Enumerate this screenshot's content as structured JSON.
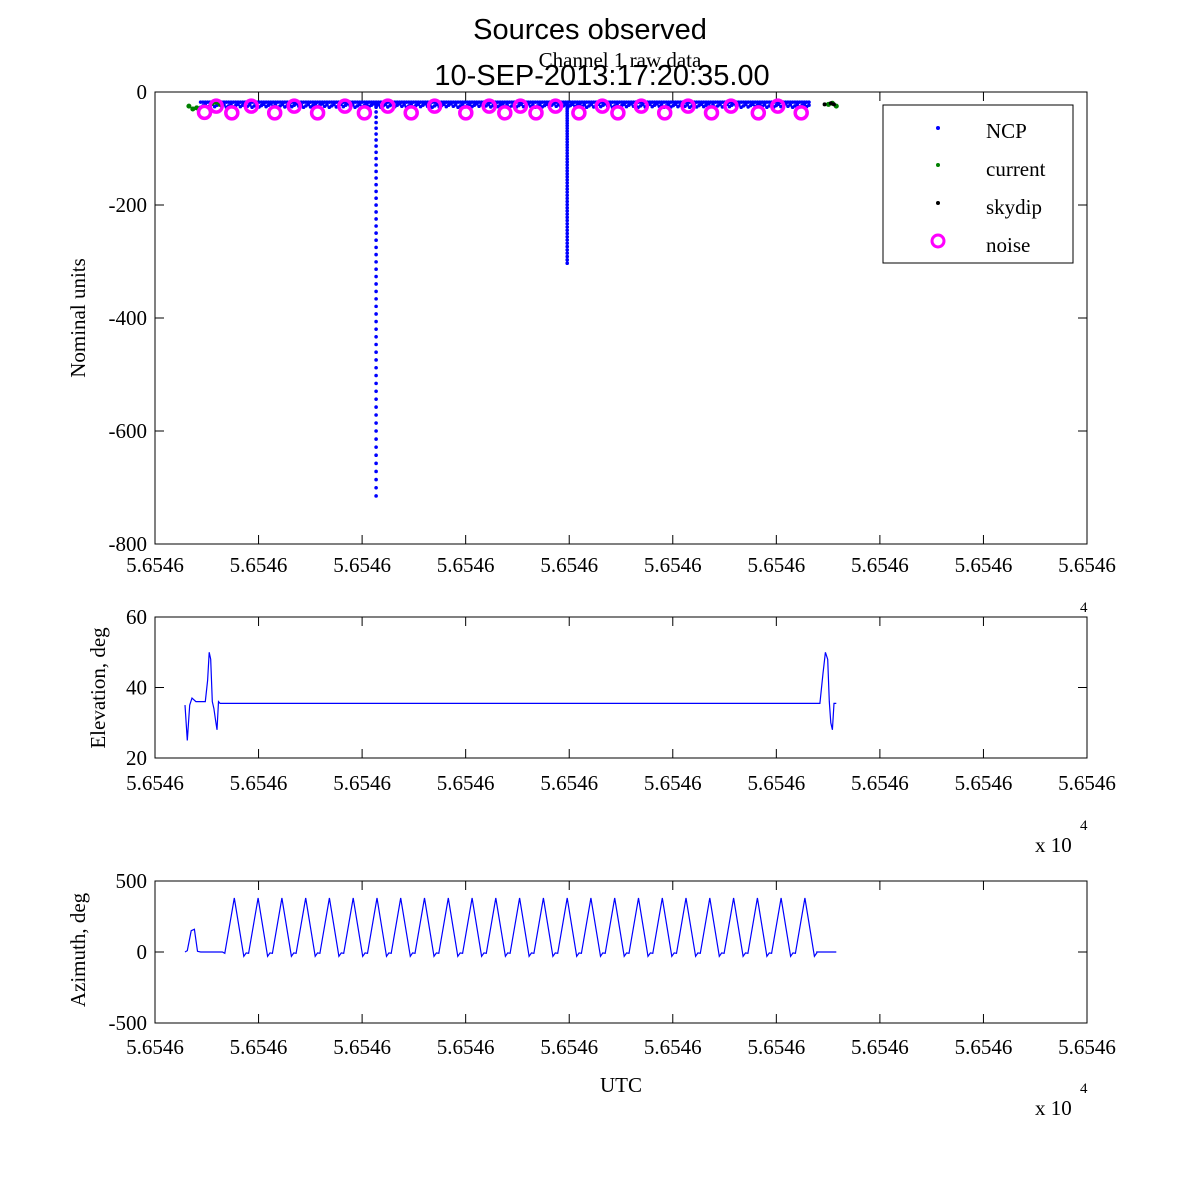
{
  "figure": {
    "title_line1": "Sources observed",
    "title_line2": "10-SEP-2013:17:20:35.00",
    "colors": {
      "axes": "#000000",
      "background": "#ffffff",
      "ncp": "#0000ff",
      "current": "#008000",
      "skydip": "#000000",
      "noise": "#ff00ff",
      "trace": "#0000ff"
    }
  },
  "chart_data": [
    {
      "type": "scatter",
      "subtitle": "Channel 1 raw data",
      "xlabel": "",
      "ylabel": "Nominal units",
      "ylim": [
        -800,
        0
      ],
      "xlim": [
        0,
        1
      ],
      "yticks": [
        0,
        -200,
        -400,
        -600,
        -800
      ],
      "xtick_labels": [
        "5.6546",
        "5.6546",
        "5.6546",
        "5.6546",
        "5.6546",
        "5.6546",
        "5.6546",
        "5.6546",
        "5.6546",
        "5.6546"
      ],
      "legend": {
        "placement": "top-right",
        "entries": [
          "NCP",
          "current",
          "skydip",
          "noise"
        ]
      },
      "series": [
        {
          "name": "NCP",
          "baseline": [
            0.02,
            0.8,
            -20
          ],
          "dips": [
            {
              "x": 0.245,
              "min": -715
            },
            {
              "x": 0.49,
              "min": -303
            }
          ]
        },
        {
          "name": "current",
          "points": [
            [
              0.005,
              -25
            ],
            [
              0.01,
              -30
            ],
            [
              0.015,
              -28
            ],
            [
              0.035,
              -20
            ],
            [
              0.04,
              -18
            ],
            [
              0.045,
              -22
            ],
            [
              0.825,
              -22
            ],
            [
              0.83,
              -20
            ],
            [
              0.835,
              -25
            ]
          ]
        },
        {
          "name": "skydip",
          "points": [
            [
              0.82,
              -22
            ],
            [
              0.828,
              -20
            ],
            [
              0.832,
              -22
            ]
          ]
        },
        {
          "name": "noise",
          "x": [
            0.025,
            0.04,
            0.06,
            0.085,
            0.115,
            0.14,
            0.17,
            0.205,
            0.23,
            0.26,
            0.29,
            0.32,
            0.36,
            0.39,
            0.41,
            0.43,
            0.45,
            0.475,
            0.505,
            0.535,
            0.555,
            0.585,
            0.615,
            0.645,
            0.675,
            0.7,
            0.735,
            0.76,
            0.79
          ],
          "values": [
            -36,
            -25,
            -37,
            -25,
            -37,
            -25,
            -37,
            -25,
            -37,
            -25,
            -37,
            -25,
            -37,
            -25,
            -37,
            -25,
            -37,
            -25,
            -37,
            -25,
            -37,
            -25,
            -37,
            -25,
            -37,
            -25,
            -37,
            -25,
            -37
          ]
        }
      ]
    },
    {
      "type": "line",
      "xlabel": "",
      "ylabel": "Elevation, deg",
      "ylim": [
        20,
        60
      ],
      "xlim": [
        0,
        1
      ],
      "yticks": [
        60,
        40,
        20
      ],
      "xtick_labels": [
        "5.6546",
        "5.6546",
        "5.6546",
        "5.6546",
        "5.6546",
        "5.6546",
        "5.6546",
        "5.6546",
        "5.6546",
        "5.6546"
      ],
      "x_exponent": "x 10",
      "x_exponent_power": "4",
      "series": [
        {
          "x": [
            0.0,
            0.003,
            0.006,
            0.009,
            0.014,
            0.02,
            0.026,
            0.029,
            0.031,
            0.033,
            0.035,
            0.037,
            0.039,
            0.041,
            0.043,
            0.045,
            0.046,
            0.05,
            0.3,
            0.6,
            0.72,
            0.8,
            0.81,
            0.814,
            0.818,
            0.821,
            0.824,
            0.826,
            0.828,
            0.83,
            0.832,
            0.835
          ],
          "values": [
            35,
            25,
            35,
            37,
            36,
            36,
            36,
            42,
            50,
            48,
            36,
            34,
            31,
            28,
            36,
            35.5,
            35.5,
            35.5,
            35.5,
            35.5,
            35.5,
            35.5,
            35.5,
            35.5,
            44,
            50,
            48,
            36,
            30,
            28,
            35.5,
            35.5
          ]
        }
      ]
    },
    {
      "type": "line",
      "xlabel": "UTC",
      "ylabel": "Azimuth, deg",
      "ylim": [
        -500,
        500
      ],
      "xlim": [
        0,
        1
      ],
      "yticks": [
        500,
        0,
        -500
      ],
      "xtick_labels": [
        "5.6546",
        "5.6546",
        "5.6546",
        "5.6546",
        "5.6546",
        "5.6546",
        "5.6546",
        "5.6546",
        "5.6546",
        "5.6546"
      ],
      "x_exponent": "x 10",
      "x_exponent_power": "4",
      "series": [
        {
          "x": [
            0.0,
            0.003,
            0.008,
            0.012,
            0.016,
            0.02,
            0.04,
            0.045,
            0.048
          ],
          "values": [
            0,
            10,
            150,
            160,
            5,
            0,
            0,
            0,
            0
          ]
        }
      ],
      "oscillation": {
        "start": 0.048,
        "end": 0.81,
        "cycles": 25,
        "min": -30,
        "max": 380,
        "tail_end": 0.835,
        "tail_value": 0
      }
    }
  ]
}
